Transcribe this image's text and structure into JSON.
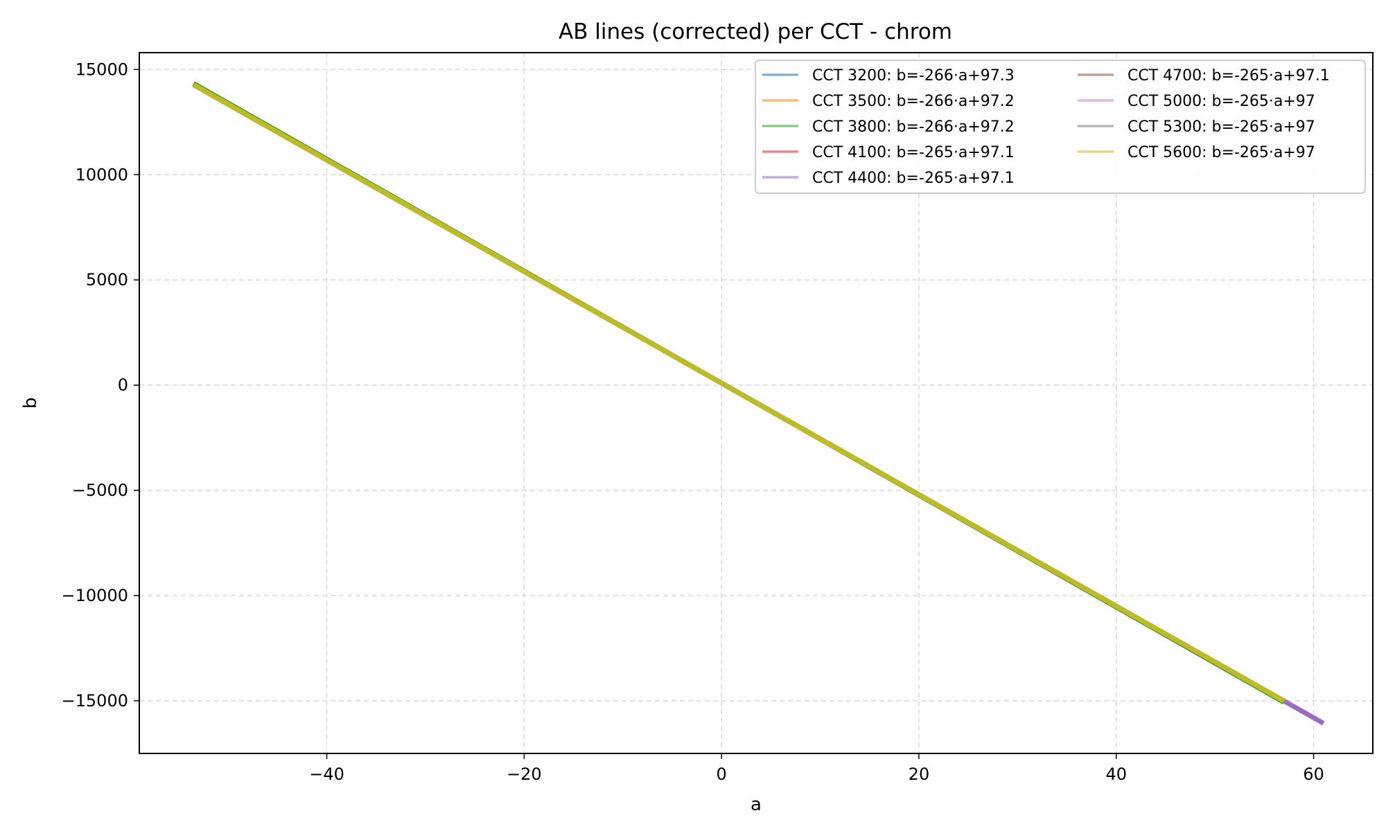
{
  "chart_data": {
    "type": "line",
    "title": "AB lines (corrected) per CCT - chrom",
    "xlabel": "a",
    "ylabel": "b",
    "xlim": [
      -59,
      66
    ],
    "ylim": [
      -17500,
      15800
    ],
    "xticks": [
      -40,
      -20,
      0,
      20,
      40,
      60
    ],
    "yticks": [
      15000,
      10000,
      5000,
      0,
      -5000,
      -10000,
      -15000
    ],
    "xtick_labels": [
      "−40",
      "−20",
      "0",
      "20",
      "40",
      "60"
    ],
    "ytick_labels": [
      "15000",
      "10000",
      "5000",
      "0",
      "−5000",
      "−10000",
      "−15000"
    ],
    "grid": true,
    "legend_position": "upper-right",
    "legend_columns": 2,
    "series": [
      {
        "name": "CCT 3200: b=-266·a+97.3",
        "slope": -266,
        "intercept": 97.3,
        "x": [
          -53.5,
          57.0
        ],
        "color": "#1f77b4"
      },
      {
        "name": "CCT 3500: b=-266·a+97.2",
        "slope": -266,
        "intercept": 97.2,
        "x": [
          -53.5,
          57.0
        ],
        "color": "#ff7f0e"
      },
      {
        "name": "CCT 3800: b=-266·a+97.2",
        "slope": -266,
        "intercept": 97.2,
        "x": [
          -53.5,
          57.0
        ],
        "color": "#2ca02c"
      },
      {
        "name": "CCT 4100: b=-265·a+97.1",
        "slope": -265,
        "intercept": 97.1,
        "x": [
          -53.5,
          57.0
        ],
        "color": "#d62728"
      },
      {
        "name": "CCT 4400: b=-265·a+97.1",
        "slope": -265,
        "intercept": 97.1,
        "x": [
          -53.5,
          61.0
        ],
        "color": "#9467bd"
      },
      {
        "name": "CCT 4700: b=-265·a+97.1",
        "slope": -265,
        "intercept": 97.1,
        "x": [
          -53.5,
          57.0
        ],
        "color": "#8c564b"
      },
      {
        "name": "CCT 5000: b=-265·a+97",
        "slope": -265,
        "intercept": 97,
        "x": [
          -53.5,
          57.0
        ],
        "color": "#e377c2"
      },
      {
        "name": "CCT 5300: b=-265·a+97",
        "slope": -265,
        "intercept": 97,
        "x": [
          -53.5,
          57.0
        ],
        "color": "#7f7f7f"
      },
      {
        "name": "CCT 5600: b=-265·a+97",
        "slope": -265,
        "intercept": 97,
        "x": [
          -53.5,
          57.0
        ],
        "color": "#bcbd22"
      }
    ]
  }
}
